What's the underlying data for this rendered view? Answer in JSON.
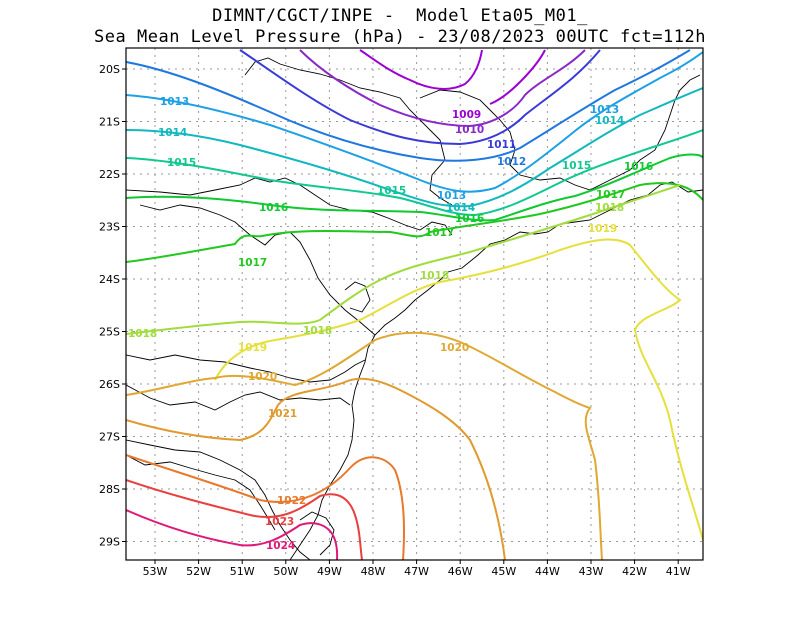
{
  "title": {
    "line1": "DIMNT/CGCT/INPE -  Model Eta05_M01_",
    "line2": "Sea Mean Level Pressure (hPa) - 23/08/2023 00UTC fct=112h"
  },
  "axes": {
    "lat_labels": [
      "20S",
      "21S",
      "22S",
      "23S",
      "24S",
      "25S",
      "26S",
      "27S",
      "28S",
      "29S"
    ],
    "lon_labels": [
      "53W",
      "52W",
      "51W",
      "50W",
      "49W",
      "48W",
      "47W",
      "46W",
      "45W",
      "44W",
      "43W",
      "42W",
      "41W"
    ]
  },
  "contours": [
    {
      "value": "1009",
      "color": "#9b00d4"
    },
    {
      "value": "1010",
      "color": "#8a28c8"
    },
    {
      "value": "1011",
      "color": "#3a3ad8"
    },
    {
      "value": "1012",
      "color": "#1f78e0"
    },
    {
      "value": "1013",
      "color": "#1ca0e6"
    },
    {
      "value": "1014",
      "color": "#10b8c0"
    },
    {
      "value": "1015",
      "color": "#10c890"
    },
    {
      "value": "1016",
      "color": "#10c830"
    },
    {
      "value": "1017",
      "color": "#22c81e"
    },
    {
      "value": "1018",
      "color": "#a0dc3c"
    },
    {
      "value": "1019",
      "color": "#e6e03c"
    },
    {
      "value": "1020",
      "color": "#e0a832"
    },
    {
      "value": "1021",
      "color": "#e09a2e"
    },
    {
      "value": "1022",
      "color": "#e8782c"
    },
    {
      "value": "1023",
      "color": "#e84040"
    },
    {
      "value": "1024",
      "color": "#e01878"
    }
  ]
}
